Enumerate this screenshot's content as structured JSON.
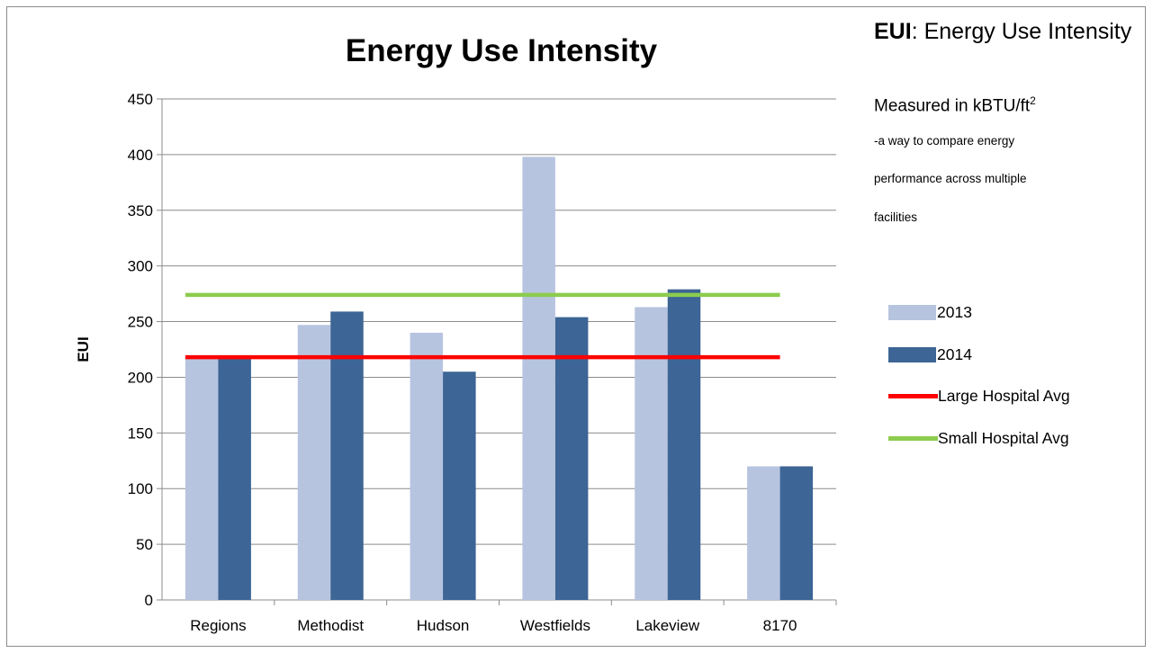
{
  "chart_data": {
    "type": "bar",
    "title": "Energy Use Intensity",
    "xlabel": "",
    "ylabel": "EUI",
    "ylim": [
      0,
      450
    ],
    "yticks": [
      0,
      50,
      100,
      150,
      200,
      250,
      300,
      350,
      400,
      450
    ],
    "grid": true,
    "legend_position": "right",
    "categories": [
      "Regions",
      "Methodist",
      "Hudson",
      "Westfields",
      "Lakeview",
      "8170"
    ],
    "series": [
      {
        "name": "2013",
        "type": "bar",
        "color": "#b7c4df",
        "values": [
          217,
          247,
          240,
          398,
          263,
          120
        ]
      },
      {
        "name": "2014",
        "type": "bar",
        "color": "#3d6595",
        "values": [
          218,
          259,
          205,
          254,
          279,
          120
        ]
      },
      {
        "name": "Large Hospital Avg",
        "type": "line",
        "color": "#ff0000",
        "value": 218
      },
      {
        "name": "Small Hospital Avg",
        "type": "line",
        "color": "#8dcc4f",
        "value": 274
      }
    ]
  },
  "annotation": {
    "title_bold": "EUI",
    "title_rest": ": Energy Use Intensity",
    "measured_prefix": "Measured in kBTU/ft",
    "measured_sup": "2",
    "desc_line1": "-a way to compare energy",
    "desc_line2": "performance across multiple",
    "desc_line3": "facilities"
  }
}
